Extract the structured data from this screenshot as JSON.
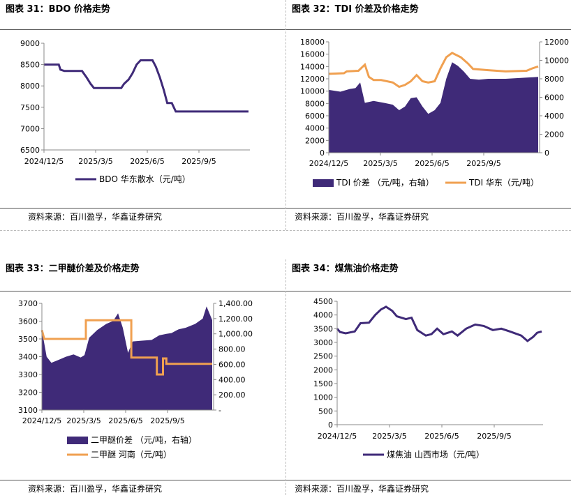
{
  "colors": {
    "purple": "#3f2a78",
    "orange": "#f0a050"
  },
  "source_text": "资料来源：百川盈孚，华鑫证券研究",
  "chart_data": [
    {
      "id": "p31",
      "type": "line",
      "title": "图表 31：BDO 价格走势",
      "x_ticks": [
        "2024/12/5",
        "2025/3/5",
        "2025/6/5",
        "2025/9/5"
      ],
      "y_ticks": [
        "9000",
        "8500",
        "8000",
        "7500",
        "7000",
        "6500"
      ],
      "ylim": [
        6500,
        9000
      ],
      "x_range": [
        "2024-12-05",
        "2025-11-30"
      ],
      "series": [
        {
          "name": "BDO 华东散水（元/吨）",
          "kind": "line",
          "color": "#3f2a78",
          "points": [
            [
              "2024-12-05",
              8500
            ],
            [
              "2024-12-31",
              8500
            ],
            [
              "2025-01-03",
              8380
            ],
            [
              "2025-01-10",
              8350
            ],
            [
              "2025-02-10",
              8350
            ],
            [
              "2025-02-18",
              8200
            ],
            [
              "2025-02-25",
              8050
            ],
            [
              "2025-03-03",
              7950
            ],
            [
              "2025-04-20",
              7950
            ],
            [
              "2025-04-25",
              8050
            ],
            [
              "2025-05-03",
              8150
            ],
            [
              "2025-05-10",
              8300
            ],
            [
              "2025-05-17",
              8500
            ],
            [
              "2025-05-24",
              8600
            ],
            [
              "2025-06-14",
              8600
            ],
            [
              "2025-06-20",
              8450
            ],
            [
              "2025-06-27",
              8200
            ],
            [
              "2025-07-04",
              7900
            ],
            [
              "2025-07-10",
              7600
            ],
            [
              "2025-07-18",
              7600
            ],
            [
              "2025-07-25",
              7400
            ],
            [
              "2025-11-30",
              7400
            ]
          ]
        }
      ]
    },
    {
      "id": "p32",
      "type": "area",
      "title": "图表 32：TDI 价差及价格走势",
      "x_ticks": [
        "2024/12/5",
        "2025/3/5",
        "2025/6/5",
        "2025/9/5"
      ],
      "y_ticks": [
        "18000",
        "16000",
        "14000",
        "12000",
        "10000",
        "8000",
        "6000",
        "4000",
        "2000",
        "0"
      ],
      "y2_ticks": [
        "12000",
        "10000",
        "8000",
        "6000",
        "4000",
        "2000",
        "0"
      ],
      "ylim": [
        0,
        18000
      ],
      "y2lim": [
        0,
        12000
      ],
      "x_range": [
        "2024-12-05",
        "2025-11-30"
      ],
      "series": [
        {
          "name": "TDI 价差 （元/吨，右轴）",
          "kind": "area",
          "axis": "right",
          "color": "#3f2a78",
          "points": [
            [
              "2024-12-05",
              6800
            ],
            [
              "2024-12-25",
              6600
            ],
            [
              "2025-01-10",
              6900
            ],
            [
              "2025-01-20",
              7000
            ],
            [
              "2025-01-28",
              7600
            ],
            [
              "2025-02-05",
              5400
            ],
            [
              "2025-02-20",
              5600
            ],
            [
              "2025-03-10",
              5400
            ],
            [
              "2025-03-25",
              5200
            ],
            [
              "2025-04-05",
              4600
            ],
            [
              "2025-04-15",
              5000
            ],
            [
              "2025-04-25",
              5900
            ],
            [
              "2025-05-05",
              6000
            ],
            [
              "2025-05-15",
              5000
            ],
            [
              "2025-05-25",
              4200
            ],
            [
              "2025-06-05",
              4600
            ],
            [
              "2025-06-15",
              5400
            ],
            [
              "2025-06-25",
              8000
            ],
            [
              "2025-07-05",
              9800
            ],
            [
              "2025-07-15",
              9400
            ],
            [
              "2025-07-25",
              8800
            ],
            [
              "2025-08-05",
              8000
            ],
            [
              "2025-08-20",
              7900
            ],
            [
              "2025-09-05",
              8000
            ],
            [
              "2025-10-05",
              8000
            ],
            [
              "2025-11-30",
              8200
            ]
          ]
        },
        {
          "name": "TDI 华东（元/吨）",
          "kind": "line",
          "axis": "left",
          "color": "#f0a050",
          "points": [
            [
              "2024-12-05",
              12800
            ],
            [
              "2024-12-31",
              12900
            ],
            [
              "2025-01-05",
              13200
            ],
            [
              "2025-01-25",
              13300
            ],
            [
              "2025-02-05",
              14300
            ],
            [
              "2025-02-12",
              12300
            ],
            [
              "2025-02-20",
              11800
            ],
            [
              "2025-03-05",
              11800
            ],
            [
              "2025-03-25",
              11400
            ],
            [
              "2025-04-05",
              10700
            ],
            [
              "2025-04-15",
              11000
            ],
            [
              "2025-04-25",
              11600
            ],
            [
              "2025-05-05",
              12600
            ],
            [
              "2025-05-15",
              11600
            ],
            [
              "2025-05-25",
              11400
            ],
            [
              "2025-06-05",
              11600
            ],
            [
              "2025-06-15",
              13700
            ],
            [
              "2025-06-25",
              15500
            ],
            [
              "2025-07-05",
              16200
            ],
            [
              "2025-07-20",
              15500
            ],
            [
              "2025-08-01",
              14500
            ],
            [
              "2025-08-10",
              13600
            ],
            [
              "2025-09-05",
              13400
            ],
            [
              "2025-10-05",
              13200
            ],
            [
              "2025-11-10",
              13300
            ],
            [
              "2025-11-20",
              13700
            ],
            [
              "2025-11-30",
              14000
            ]
          ]
        }
      ]
    },
    {
      "id": "p33",
      "type": "area",
      "title": "图表 33：二甲醚价差及价格走势",
      "x_ticks": [
        "2024/12/5",
        "2025/3/5",
        "2025/6/5",
        "2025/9/5"
      ],
      "y_ticks": [
        "3700",
        "3600",
        "3500",
        "3400",
        "3300",
        "3200",
        "3100"
      ],
      "y2_ticks": [
        "1,400.00",
        "1,200.00",
        "1,000.00",
        "800.00",
        "600.00",
        "400.00",
        "200.00",
        "-"
      ],
      "ylim": [
        3100,
        3700
      ],
      "y2lim": [
        0,
        1400
      ],
      "x_range": [
        "2024-12-05",
        "2025-11-30"
      ],
      "series": [
        {
          "name": "二甲醚价差 （元/吨，右轴）",
          "kind": "area",
          "axis": "right",
          "color": "#3f2a78",
          "points": [
            [
              "2024-12-05",
              1050
            ],
            [
              "2024-12-15",
              700
            ],
            [
              "2024-12-25",
              620
            ],
            [
              "2025-01-10",
              660
            ],
            [
              "2025-01-25",
              700
            ],
            [
              "2025-02-10",
              730
            ],
            [
              "2025-02-25",
              690
            ],
            [
              "2025-03-05",
              720
            ],
            [
              "2025-03-15",
              950
            ],
            [
              "2025-04-01",
              1050
            ],
            [
              "2025-04-20",
              1130
            ],
            [
              "2025-05-05",
              1170
            ],
            [
              "2025-05-15",
              1270
            ],
            [
              "2025-05-25",
              1080
            ],
            [
              "2025-06-05",
              750
            ],
            [
              "2025-06-15",
              900
            ],
            [
              "2025-07-05",
              910
            ],
            [
              "2025-07-25",
              920
            ],
            [
              "2025-08-10",
              980
            ],
            [
              "2025-08-25",
              1000
            ],
            [
              "2025-09-05",
              1010
            ],
            [
              "2025-09-20",
              1060
            ],
            [
              "2025-10-05",
              1080
            ],
            [
              "2025-10-25",
              1130
            ],
            [
              "2025-11-10",
              1200
            ],
            [
              "2025-11-18",
              1360
            ],
            [
              "2025-11-30",
              1180
            ]
          ]
        },
        {
          "name": "二甲醚 河南（元/吨）",
          "kind": "step",
          "axis": "left",
          "color": "#f0a050",
          "points": [
            [
              "2024-12-05",
              3550
            ],
            [
              "2024-12-10",
              3500
            ],
            [
              "2025-03-08",
              3500
            ],
            [
              "2025-03-08",
              3605
            ],
            [
              "2025-06-12",
              3605
            ],
            [
              "2025-06-12",
              3395
            ],
            [
              "2025-08-05",
              3395
            ],
            [
              "2025-08-05",
              3300
            ],
            [
              "2025-08-18",
              3300
            ],
            [
              "2025-08-18",
              3390
            ],
            [
              "2025-08-25",
              3390
            ],
            [
              "2025-08-25",
              3360
            ],
            [
              "2025-11-30",
              3360
            ]
          ]
        }
      ]
    },
    {
      "id": "p34",
      "type": "line",
      "title": "图表 34：煤焦油价格走势",
      "x_ticks": [
        "2024/12/5",
        "2025/3/5",
        "2025/6/5",
        "2025/9/5"
      ],
      "y_ticks": [
        "4500",
        "4000",
        "3500",
        "3000",
        "2500",
        "2000",
        "1500",
        "1000",
        "500",
        "0"
      ],
      "ylim": [
        0,
        4500
      ],
      "x_range": [
        "2024-12-05",
        "2025-11-30"
      ],
      "series": [
        {
          "name": "煤焦油 山西市场（元/吨）",
          "kind": "line",
          "color": "#3f2a78",
          "points": [
            [
              "2024-12-05",
              3500
            ],
            [
              "2024-12-10",
              3380
            ],
            [
              "2024-12-20",
              3330
            ],
            [
              "2025-01-05",
              3400
            ],
            [
              "2025-01-15",
              3700
            ],
            [
              "2025-01-30",
              3720
            ],
            [
              "2025-02-10",
              4000
            ],
            [
              "2025-02-20",
              4200
            ],
            [
              "2025-03-01",
              4300
            ],
            [
              "2025-03-12",
              4150
            ],
            [
              "2025-03-20",
              3950
            ],
            [
              "2025-04-05",
              3850
            ],
            [
              "2025-04-15",
              3900
            ],
            [
              "2025-04-25",
              3450
            ],
            [
              "2025-05-10",
              3250
            ],
            [
              "2025-05-20",
              3300
            ],
            [
              "2025-05-30",
              3500
            ],
            [
              "2025-06-10",
              3300
            ],
            [
              "2025-06-25",
              3400
            ],
            [
              "2025-07-05",
              3250
            ],
            [
              "2025-07-20",
              3500
            ],
            [
              "2025-08-05",
              3650
            ],
            [
              "2025-08-20",
              3600
            ],
            [
              "2025-09-05",
              3450
            ],
            [
              "2025-09-20",
              3500
            ],
            [
              "2025-10-05",
              3400
            ],
            [
              "2025-10-25",
              3250
            ],
            [
              "2025-11-05",
              3050
            ],
            [
              "2025-11-15",
              3200
            ],
            [
              "2025-11-22",
              3350
            ],
            [
              "2025-11-30",
              3400
            ]
          ]
        }
      ]
    }
  ]
}
